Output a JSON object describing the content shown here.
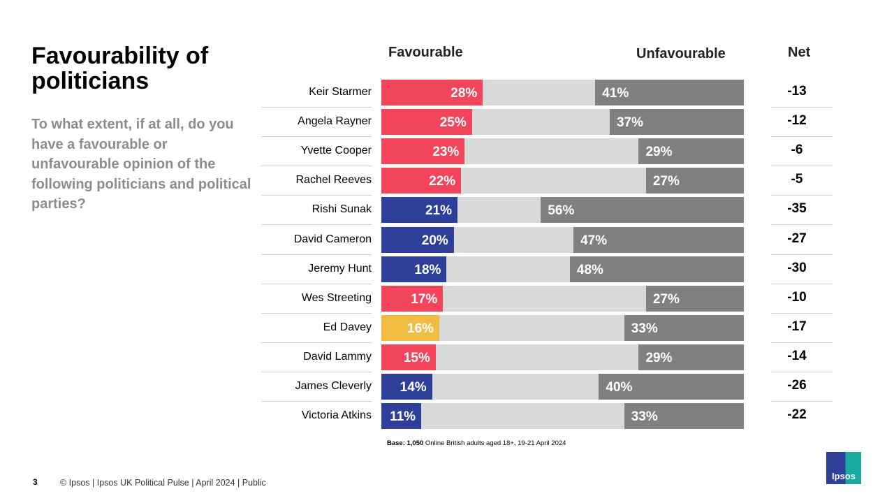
{
  "title": "Favourability of politicians",
  "question": "To what extent, if at all, do you have a favourable or unfavourable opinion of the following politicians and political parties?",
  "chart_data": {
    "type": "bar",
    "orientation": "horizontal-diverging-stacked",
    "column_headers": {
      "favourable": "Favourable",
      "unfavourable": "Unfavourable",
      "net": "Net"
    },
    "categories": [
      "Keir Starmer",
      "Angela Rayner",
      "Yvette Cooper",
      "Rachel Reeves",
      "Rishi Sunak",
      "David Cameron",
      "Jeremy Hunt",
      "Wes Streeting",
      "Ed Davey",
      "David Lammy",
      "James Cleverly",
      "Victoria Atkins"
    ],
    "series": [
      {
        "name": "Favourable",
        "values": [
          28,
          25,
          23,
          22,
          21,
          20,
          18,
          17,
          16,
          15,
          14,
          11
        ]
      },
      {
        "name": "Unfavourable",
        "values": [
          41,
          37,
          29,
          27,
          56,
          47,
          48,
          27,
          33,
          29,
          40,
          33
        ]
      }
    ],
    "net": [
      "-13",
      "-12",
      "-6",
      "-5",
      "-35",
      "-27",
      "-30",
      "-10",
      "-17",
      "-14",
      "-26",
      "-22"
    ],
    "party_colors": [
      "#F2445A",
      "#F2445A",
      "#F2445A",
      "#F2445A",
      "#2E3F99",
      "#2E3F99",
      "#2E3F99",
      "#F2445A",
      "#F0BC41",
      "#F2445A",
      "#2E3F99",
      "#2E3F99"
    ],
    "colors": {
      "middle": "#D9D9D9",
      "unfavourable": "#808080"
    },
    "xlim": [
      0,
      100
    ]
  },
  "base_note": {
    "bold": "Base: 1,050",
    "rest": " Online British adults aged 18+, 19-21 April 2024"
  },
  "footer": {
    "page": "3",
    "text": "© Ipsos |  Ipsos UK Political Pulse | April 2024 | Public",
    "logo": "Ipsos"
  }
}
